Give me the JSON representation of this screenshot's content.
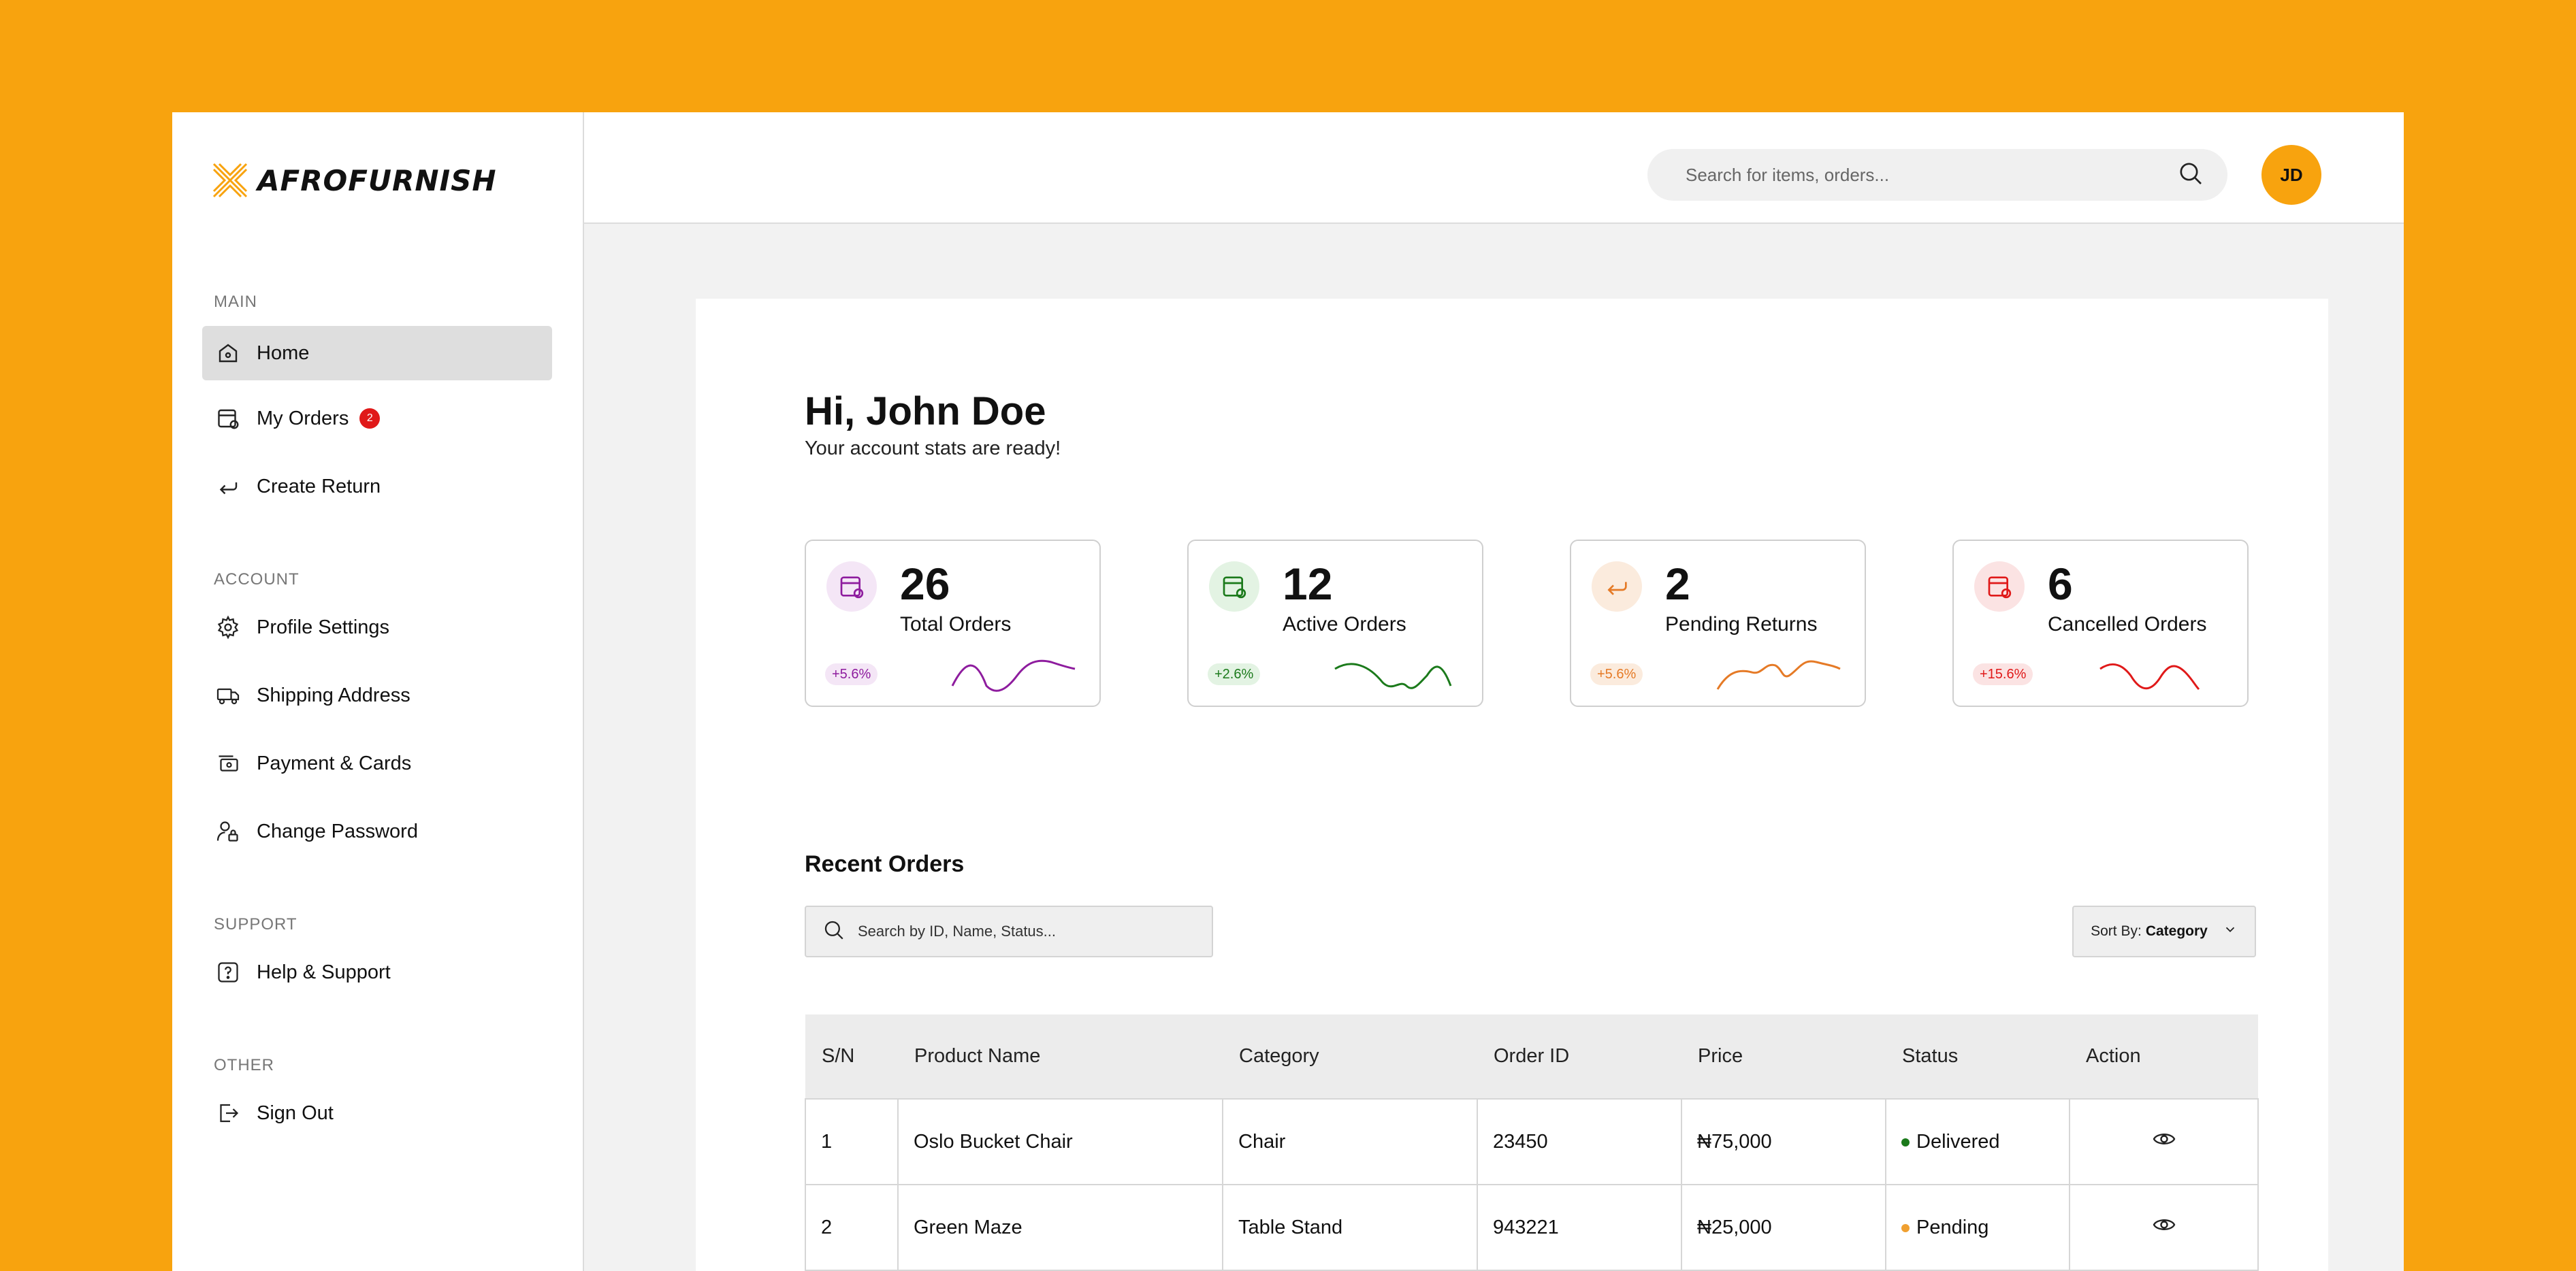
{
  "brand": {
    "name": "AFROFURNISH",
    "accent": "#F8A30E"
  },
  "sidebar": {
    "sections": [
      {
        "label": "MAIN"
      },
      {
        "label": "ACCOUNT"
      },
      {
        "label": "SUPPORT"
      },
      {
        "label": "OTHER"
      }
    ],
    "items": [
      {
        "label": "Home",
        "icon": "home-icon",
        "active": true
      },
      {
        "label": "My Orders",
        "icon": "orders-icon",
        "badge": "2"
      },
      {
        "label": "Create Return",
        "icon": "return-icon"
      },
      {
        "label": "Profile Settings",
        "icon": "gear-icon"
      },
      {
        "label": "Shipping Address",
        "icon": "truck-icon"
      },
      {
        "label": "Payment & Cards",
        "icon": "card-icon"
      },
      {
        "label": "Change Password",
        "icon": "user-lock-icon"
      },
      {
        "label": "Help & Support",
        "icon": "help-icon"
      },
      {
        "label": "Sign Out",
        "icon": "sign-out-icon"
      }
    ]
  },
  "header": {
    "search_placeholder": "Search for items, orders...",
    "avatar_initials": "JD"
  },
  "main": {
    "greeting": "Hi, John Doe",
    "subgreeting": "Your account stats are ready!",
    "stats": [
      {
        "value": "26",
        "label": "Total Orders",
        "trend": "+5.6%",
        "color": "#8E1C9E",
        "bg": "#F4E6F6",
        "icon": "orders-icon"
      },
      {
        "value": "12",
        "label": "Active Orders",
        "trend": "+2.6%",
        "color": "#1B7A1B",
        "bg": "#E3F3E3",
        "icon": "active-orders-icon"
      },
      {
        "value": "2",
        "label": "Pending Returns",
        "trend": "+5.6%",
        "color": "#E57A26",
        "bg": "#FBEBDD",
        "icon": "return-icon"
      },
      {
        "value": "6",
        "label": "Cancelled Orders",
        "trend": "+15.6%",
        "color": "#E01919",
        "bg": "#FBE3E3",
        "icon": "cancelled-orders-icon"
      }
    ],
    "recent_orders": {
      "title": "Recent Orders",
      "search_placeholder": "Search by ID, Name, Status...",
      "sort_prefix": "Sort By:",
      "sort_value": "Category",
      "columns": [
        "S/N",
        "Product Name",
        "Category",
        "Order ID",
        "Price",
        "Status",
        "Action"
      ],
      "rows": [
        {
          "sn": "1",
          "product": "Oslo Bucket Chair",
          "category": "Chair",
          "order_id": "23450",
          "price": "₦75,000",
          "status": "Delivered",
          "status_color": "#1B7A1B"
        },
        {
          "sn": "2",
          "product": "Green Maze",
          "category": "Table Stand",
          "order_id": "943221",
          "price": "₦25,000",
          "status": "Pending",
          "status_color": "#F0A030"
        }
      ]
    }
  }
}
